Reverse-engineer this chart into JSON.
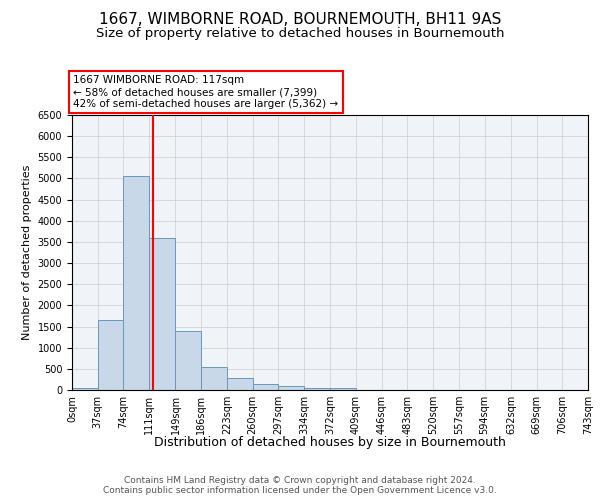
{
  "title": "1667, WIMBORNE ROAD, BOURNEMOUTH, BH11 9AS",
  "subtitle": "Size of property relative to detached houses in Bournemouth",
  "xlabel": "Distribution of detached houses by size in Bournemouth",
  "ylabel": "Number of detached properties",
  "footer_line1": "Contains HM Land Registry data © Crown copyright and database right 2024.",
  "footer_line2": "Contains public sector information licensed under the Open Government Licence v3.0.",
  "bin_edges": [
    0,
    37,
    74,
    111,
    149,
    186,
    223,
    260,
    297,
    334,
    372,
    409,
    446,
    483,
    520,
    557,
    594,
    632,
    669,
    706,
    743
  ],
  "bar_heights": [
    50,
    1650,
    5050,
    3600,
    1400,
    550,
    280,
    150,
    100,
    50,
    50,
    0,
    0,
    0,
    0,
    0,
    0,
    0,
    0,
    0
  ],
  "bar_color": "#c8d8e8",
  "bar_edge_color": "#6699bb",
  "red_line_x": 117,
  "ylim": [
    0,
    6500
  ],
  "yticks": [
    0,
    500,
    1000,
    1500,
    2000,
    2500,
    3000,
    3500,
    4000,
    4500,
    5000,
    5500,
    6000,
    6500
  ],
  "annotation_text": "1667 WIMBORNE ROAD: 117sqm\n← 58% of detached houses are smaller (7,399)\n42% of semi-detached houses are larger (5,362) →",
  "annotation_box_color": "white",
  "annotation_box_edge_color": "red",
  "grid_color": "#cccccc",
  "bg_color": "#f0f4f8",
  "title_fontsize": 11,
  "subtitle_fontsize": 9.5,
  "xlabel_fontsize": 9,
  "ylabel_fontsize": 8,
  "tick_label_fontsize": 7,
  "annotation_fontsize": 7.5,
  "footer_fontsize": 6.5
}
